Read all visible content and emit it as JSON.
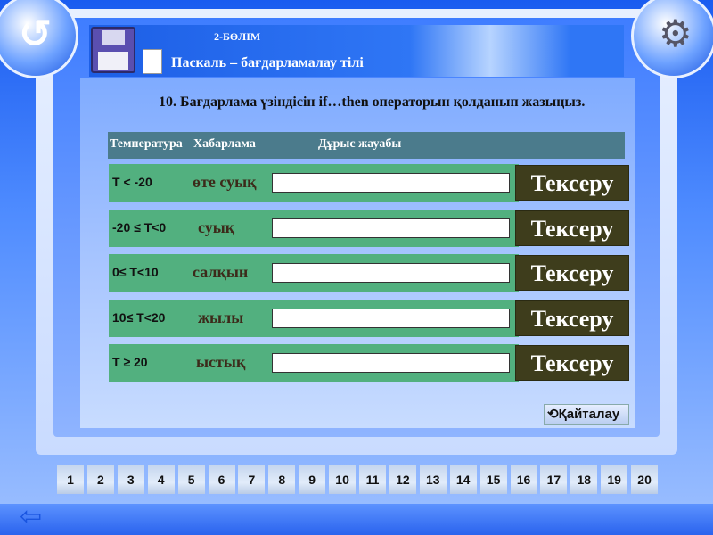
{
  "header": {
    "section": "2-БӨЛІМ",
    "subtitle": "Паскаль – бағдарламалау тілі"
  },
  "question": "10. Бағдарлама үзіндісін if…then операторын қолданып жазыңыз.",
  "table": {
    "headers": [
      "Температура",
      "Хабарлама",
      "Дұрыс жауабы"
    ],
    "rows": [
      {
        "condition": "T < -20",
        "message": "өте суық",
        "answer": "",
        "button": "Тексеру"
      },
      {
        "condition": "-20 ≤ T<0",
        "message": "суық",
        "answer": "",
        "button": "Тексеру"
      },
      {
        "condition": "0≤ T<10",
        "message": "салқын",
        "answer": "",
        "button": "Тексеру"
      },
      {
        "condition": "10≤ T<20",
        "message": "жылы",
        "answer": "",
        "button": "Тексеру"
      },
      {
        "condition": "T ≥ 20",
        "message": "ыстық",
        "answer": "",
        "button": "Тексеру"
      }
    ]
  },
  "repeat_button": "Қайталау",
  "pages": [
    "1",
    "2",
    "3",
    "4",
    "5",
    "6",
    "7",
    "8",
    "9",
    "10",
    "11",
    "12",
    "13",
    "14",
    "15",
    "16",
    "17",
    "18",
    "19",
    "20"
  ],
  "icons": {
    "top_left": "undo-icon",
    "top_right": "gear-icon",
    "floppy": "floppy-disk-icon",
    "back": "back-arrow-icon"
  },
  "colors": {
    "row": "#52b07f",
    "button": "#3e3d1c",
    "header_bar": "#4b7b8c"
  }
}
